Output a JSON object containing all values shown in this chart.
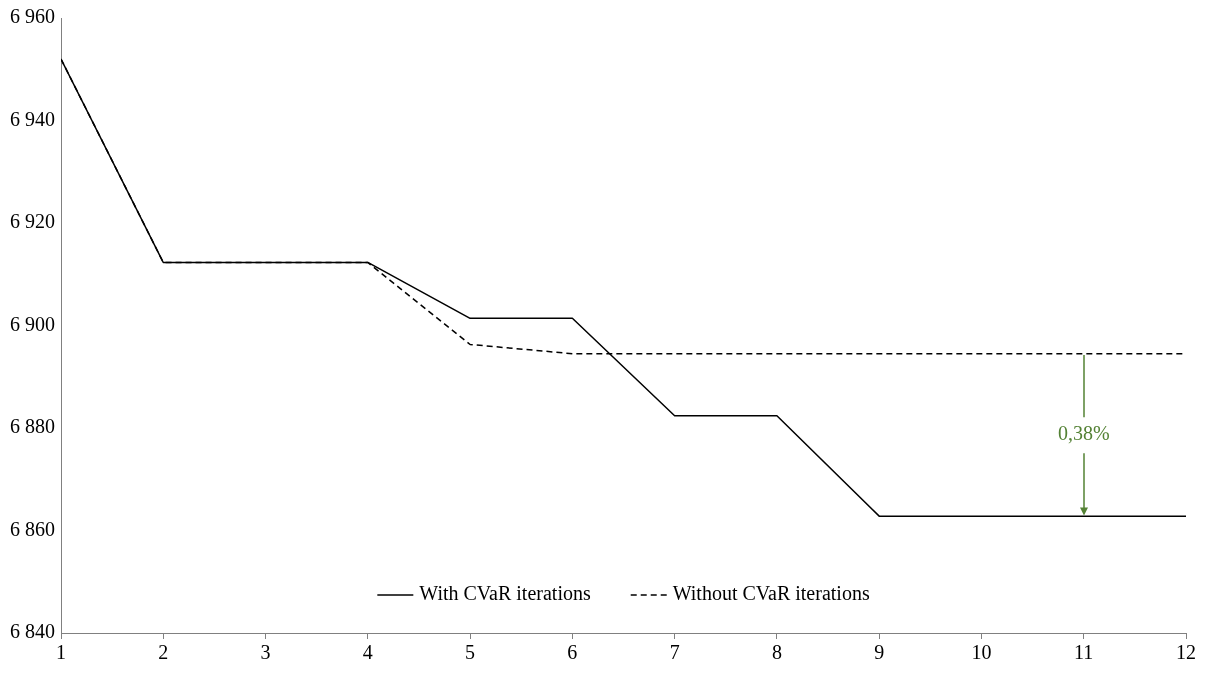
{
  "chart_data": {
    "type": "line",
    "x": [
      1,
      2,
      3,
      4,
      5,
      6,
      7,
      8,
      9,
      10,
      11,
      12
    ],
    "series": [
      {
        "name": "With CVaR iterations",
        "color": "#000000",
        "line_style": "solid",
        "values": [
          6952,
          6912.3,
          6912.3,
          6912.3,
          6901.4,
          6901.4,
          6882.4,
          6882.4,
          6862.8,
          6862.8,
          6862.8,
          6862.8
        ]
      },
      {
        "name": "Without CVaR iterations",
        "color": "#000000",
        "line_style": "dashed",
        "values": [
          6952,
          6912.3,
          6912.3,
          6912.3,
          6896.3,
          6894.5,
          6894.5,
          6894.5,
          6894.5,
          6894.5,
          6894.5,
          6894.5
        ]
      }
    ],
    "xlim": [
      1,
      12
    ],
    "xticks": [
      1,
      2,
      3,
      4,
      5,
      6,
      7,
      8,
      9,
      10,
      11,
      12
    ],
    "ylim": [
      6840,
      6960
    ],
    "yticks": [
      {
        "value": 6840,
        "label": "6 840"
      },
      {
        "value": 6860,
        "label": "6 860"
      },
      {
        "value": 6880,
        "label": "6 880"
      },
      {
        "value": 6900,
        "label": "6 900"
      },
      {
        "value": 6920,
        "label": "6 920"
      },
      {
        "value": 6940,
        "label": "6 940"
      },
      {
        "value": 6960,
        "label": "6 960"
      }
    ],
    "annotations": [
      {
        "text": "0,38%",
        "x": 11,
        "y": 6862.8
      }
    ],
    "grid": false,
    "legend": "bottom",
    "marker": "none"
  }
}
